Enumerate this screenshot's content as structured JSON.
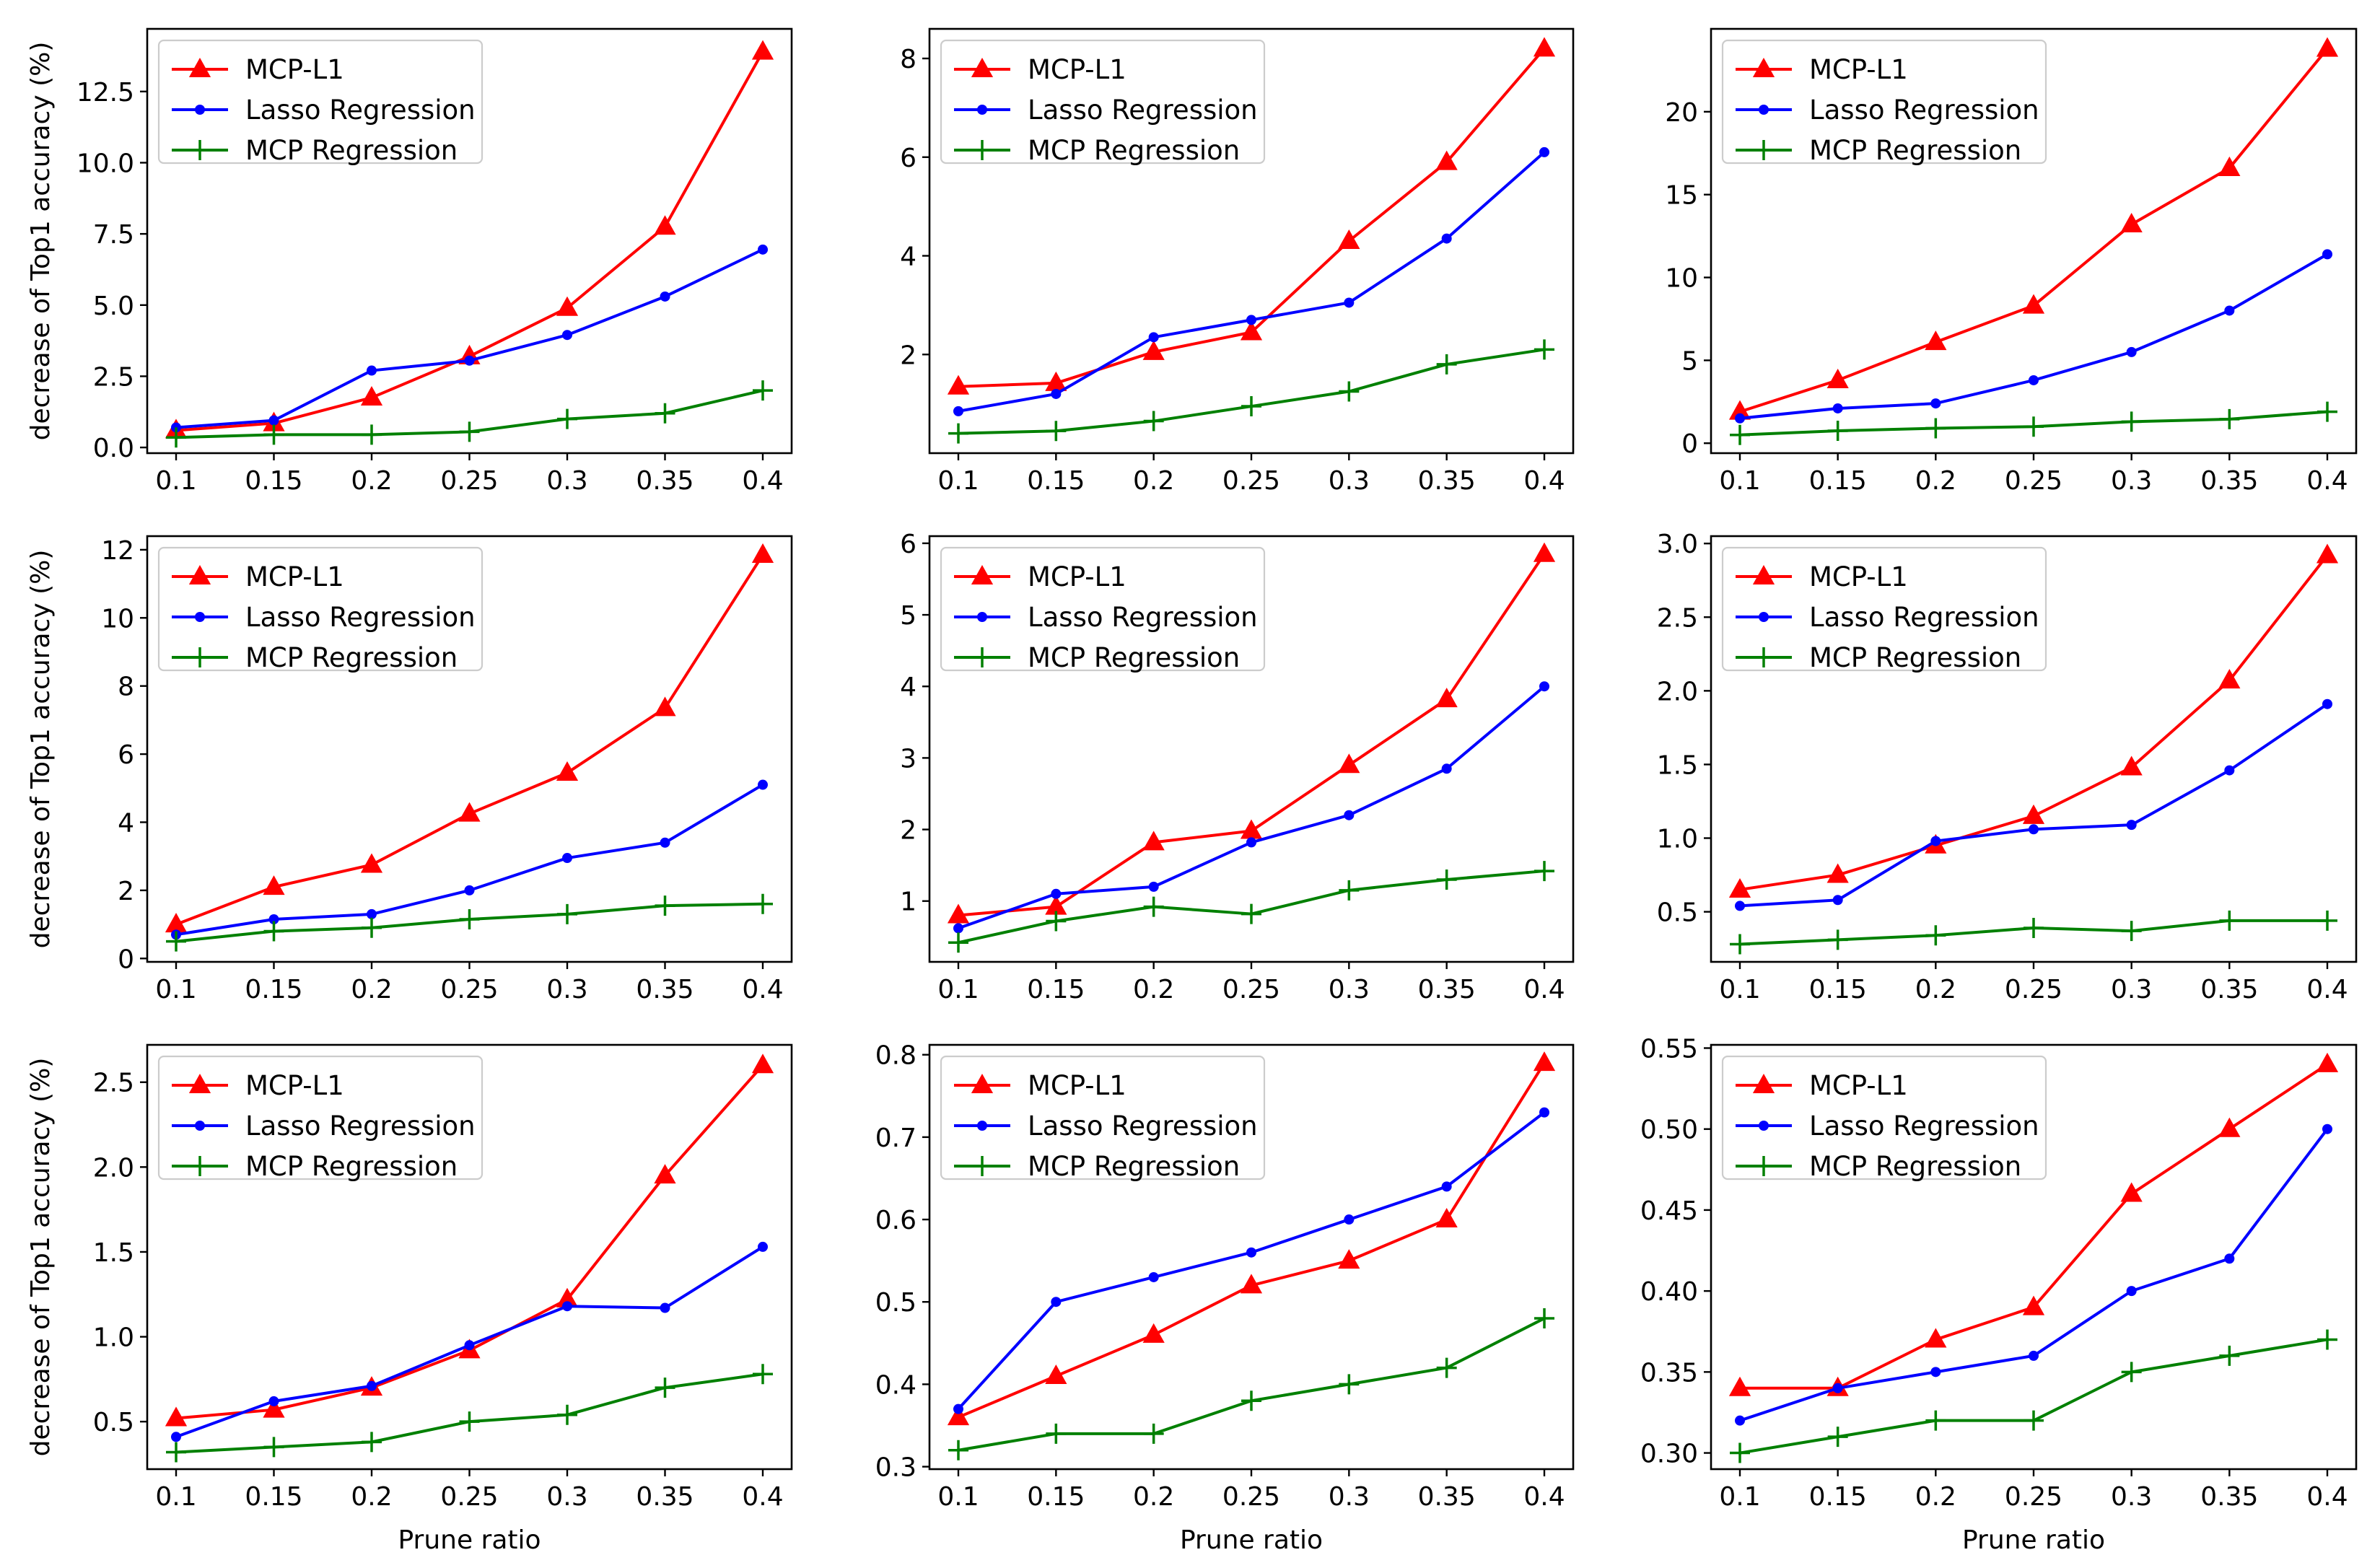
{
  "chart_data": [
    {
      "type": "line",
      "x": [
        "0.1",
        "0.15",
        "0.2",
        "0.25",
        "0.3",
        "0.35",
        "0.4"
      ],
      "series": [
        {
          "name": "MCP-L1",
          "color": "#ff0000",
          "marker": "triangle",
          "values": [
            0.6,
            0.85,
            1.75,
            3.2,
            4.9,
            7.75,
            13.9
          ]
        },
        {
          "name": "Lasso Regression",
          "color": "#0000ff",
          "marker": "dot",
          "values": [
            0.7,
            0.95,
            2.7,
            3.05,
            3.95,
            5.3,
            6.95
          ]
        },
        {
          "name": "MCP Regression",
          "color": "#008000",
          "marker": "plus",
          "values": [
            0.35,
            0.45,
            0.45,
            0.55,
            1.0,
            1.2,
            2.0
          ]
        }
      ],
      "ylim": [
        -0.2,
        14.7
      ],
      "yticks": [
        0.0,
        2.5,
        5.0,
        7.5,
        10.0,
        12.5
      ],
      "ytick_labels": [
        "0.0",
        "2.5",
        "5.0",
        "7.5",
        "10.0",
        "12.5"
      ],
      "ylabel": "decrease of Top1 accuracy (%)",
      "xlabel": "",
      "legend": "upper left"
    },
    {
      "type": "line",
      "x": [
        "0.1",
        "0.15",
        "0.2",
        "0.25",
        "0.3",
        "0.35",
        "0.4"
      ],
      "series": [
        {
          "name": "MCP-L1",
          "color": "#ff0000",
          "marker": "triangle",
          "values": [
            1.35,
            1.42,
            2.05,
            2.45,
            4.3,
            5.9,
            8.2
          ]
        },
        {
          "name": "Lasso Regression",
          "color": "#0000ff",
          "marker": "dot",
          "values": [
            0.85,
            1.2,
            2.35,
            2.7,
            3.05,
            4.35,
            6.1
          ]
        },
        {
          "name": "MCP Regression",
          "color": "#008000",
          "marker": "plus",
          "values": [
            0.4,
            0.45,
            0.65,
            0.95,
            1.25,
            1.8,
            2.1
          ]
        }
      ],
      "ylim": [
        0.0,
        8.6
      ],
      "yticks": [
        2,
        4,
        6,
        8
      ],
      "ytick_labels": [
        "2",
        "4",
        "6",
        "8"
      ],
      "ylabel": "",
      "xlabel": "",
      "legend": "upper left"
    },
    {
      "type": "line",
      "x": [
        "0.1",
        "0.15",
        "0.2",
        "0.25",
        "0.3",
        "0.35",
        "0.4"
      ],
      "series": [
        {
          "name": "MCP-L1",
          "color": "#ff0000",
          "marker": "triangle",
          "values": [
            1.9,
            3.8,
            6.1,
            8.3,
            13.2,
            16.6,
            23.8
          ]
        },
        {
          "name": "Lasso Regression",
          "color": "#0000ff",
          "marker": "dot",
          "values": [
            1.5,
            2.1,
            2.4,
            3.8,
            5.5,
            8.0,
            11.4
          ]
        },
        {
          "name": "MCP Regression",
          "color": "#008000",
          "marker": "plus",
          "values": [
            0.5,
            0.75,
            0.9,
            1.0,
            1.3,
            1.45,
            1.9
          ]
        }
      ],
      "ylim": [
        -0.6,
        25.0
      ],
      "yticks": [
        0,
        5,
        10,
        15,
        20
      ],
      "ytick_labels": [
        "0",
        "5",
        "10",
        "15",
        "20"
      ],
      "ylabel": "",
      "xlabel": "",
      "legend": "upper left"
    },
    {
      "type": "line",
      "x": [
        "0.1",
        "0.15",
        "0.2",
        "0.25",
        "0.3",
        "0.35",
        "0.4"
      ],
      "series": [
        {
          "name": "MCP-L1",
          "color": "#ff0000",
          "marker": "triangle",
          "values": [
            1.0,
            2.1,
            2.75,
            4.25,
            5.45,
            7.35,
            11.85
          ]
        },
        {
          "name": "Lasso Regression",
          "color": "#0000ff",
          "marker": "dot",
          "values": [
            0.7,
            1.15,
            1.3,
            2.0,
            2.95,
            3.4,
            5.1
          ]
        },
        {
          "name": "MCP Regression",
          "color": "#008000",
          "marker": "plus",
          "values": [
            0.5,
            0.8,
            0.9,
            1.15,
            1.3,
            1.55,
            1.6
          ]
        }
      ],
      "ylim": [
        -0.1,
        12.4
      ],
      "yticks": [
        0,
        2,
        4,
        6,
        8,
        10,
        12
      ],
      "ytick_labels": [
        "0",
        "2",
        "4",
        "6",
        "8",
        "10",
        "12"
      ],
      "ylabel": "decrease of Top1 accuracy (%)",
      "xlabel": "",
      "legend": "upper left"
    },
    {
      "type": "line",
      "x": [
        "0.1",
        "0.15",
        "0.2",
        "0.25",
        "0.3",
        "0.35",
        "0.4"
      ],
      "series": [
        {
          "name": "MCP-L1",
          "color": "#ff0000",
          "marker": "triangle",
          "values": [
            0.8,
            0.92,
            1.82,
            1.98,
            2.9,
            3.82,
            5.85
          ]
        },
        {
          "name": "Lasso Regression",
          "color": "#0000ff",
          "marker": "dot",
          "values": [
            0.62,
            1.1,
            1.2,
            1.82,
            2.2,
            2.85,
            4.0
          ]
        },
        {
          "name": "MCP Regression",
          "color": "#008000",
          "marker": "plus",
          "values": [
            0.42,
            0.72,
            0.92,
            0.82,
            1.15,
            1.3,
            1.42
          ]
        }
      ],
      "ylim": [
        0.15,
        6.1
      ],
      "yticks": [
        1,
        2,
        3,
        4,
        5,
        6
      ],
      "ytick_labels": [
        "1",
        "2",
        "3",
        "4",
        "5",
        "6"
      ],
      "ylabel": "",
      "xlabel": "",
      "legend": "upper left"
    },
    {
      "type": "line",
      "x": [
        "0.1",
        "0.15",
        "0.2",
        "0.25",
        "0.3",
        "0.35",
        "0.4"
      ],
      "series": [
        {
          "name": "MCP-L1",
          "color": "#ff0000",
          "marker": "triangle",
          "values": [
            0.65,
            0.75,
            0.95,
            1.15,
            1.48,
            2.07,
            2.92
          ]
        },
        {
          "name": "Lasso Regression",
          "color": "#0000ff",
          "marker": "dot",
          "values": [
            0.54,
            0.58,
            0.98,
            1.06,
            1.09,
            1.46,
            1.91
          ]
        },
        {
          "name": "MCP Regression",
          "color": "#008000",
          "marker": "plus",
          "values": [
            0.28,
            0.31,
            0.34,
            0.39,
            0.37,
            0.44,
            0.44
          ]
        }
      ],
      "ylim": [
        0.16,
        3.05
      ],
      "yticks": [
        0.5,
        1.0,
        1.5,
        2.0,
        2.5,
        3.0
      ],
      "ytick_labels": [
        "0.5",
        "1.0",
        "1.5",
        "2.0",
        "2.5",
        "3.0"
      ],
      "ylabel": "",
      "xlabel": "",
      "legend": "upper left"
    },
    {
      "type": "line",
      "x": [
        "0.1",
        "0.15",
        "0.2",
        "0.25",
        "0.3",
        "0.35",
        "0.4"
      ],
      "series": [
        {
          "name": "MCP-L1",
          "color": "#ff0000",
          "marker": "triangle",
          "values": [
            0.52,
            0.57,
            0.7,
            0.92,
            1.22,
            1.95,
            2.6
          ]
        },
        {
          "name": "Lasso Regression",
          "color": "#0000ff",
          "marker": "dot",
          "values": [
            0.41,
            0.62,
            0.71,
            0.95,
            1.18,
            1.17,
            1.53
          ]
        },
        {
          "name": "MCP Regression",
          "color": "#008000",
          "marker": "plus",
          "values": [
            0.32,
            0.35,
            0.38,
            0.5,
            0.54,
            0.7,
            0.78
          ]
        }
      ],
      "ylim": [
        0.22,
        2.72
      ],
      "yticks": [
        0.5,
        1.0,
        1.5,
        2.0,
        2.5
      ],
      "ytick_labels": [
        "0.5",
        "1.0",
        "1.5",
        "2.0",
        "2.5"
      ],
      "ylabel": "decrease of Top1 accuracy (%)",
      "xlabel": "Prune ratio",
      "legend": "upper left"
    },
    {
      "type": "line",
      "x": [
        "0.1",
        "0.15",
        "0.2",
        "0.25",
        "0.3",
        "0.35",
        "0.4"
      ],
      "series": [
        {
          "name": "MCP-L1",
          "color": "#ff0000",
          "marker": "triangle",
          "values": [
            0.36,
            0.41,
            0.46,
            0.52,
            0.55,
            0.6,
            0.79
          ]
        },
        {
          "name": "Lasso Regression",
          "color": "#0000ff",
          "marker": "dot",
          "values": [
            0.37,
            0.5,
            0.53,
            0.56,
            0.6,
            0.64,
            0.73
          ]
        },
        {
          "name": "MCP Regression",
          "color": "#008000",
          "marker": "plus",
          "values": [
            0.32,
            0.34,
            0.34,
            0.38,
            0.4,
            0.42,
            0.48
          ]
        }
      ],
      "ylim": [
        0.297,
        0.812
      ],
      "yticks": [
        0.3,
        0.4,
        0.5,
        0.6,
        0.7,
        0.8
      ],
      "ytick_labels": [
        "0.3",
        "0.4",
        "0.5",
        "0.6",
        "0.7",
        "0.8"
      ],
      "ylabel": "",
      "xlabel": "Prune ratio",
      "legend": "upper left"
    },
    {
      "type": "line",
      "x": [
        "0.1",
        "0.15",
        "0.2",
        "0.25",
        "0.3",
        "0.35",
        "0.4"
      ],
      "series": [
        {
          "name": "MCP-L1",
          "color": "#ff0000",
          "marker": "triangle",
          "values": [
            0.34,
            0.34,
            0.37,
            0.39,
            0.46,
            0.5,
            0.54
          ]
        },
        {
          "name": "Lasso Regression",
          "color": "#0000ff",
          "marker": "dot",
          "values": [
            0.32,
            0.34,
            0.35,
            0.36,
            0.4,
            0.42,
            0.5
          ]
        },
        {
          "name": "MCP Regression",
          "color": "#008000",
          "marker": "plus",
          "values": [
            0.3,
            0.31,
            0.32,
            0.32,
            0.35,
            0.36,
            0.37
          ]
        }
      ],
      "ylim": [
        0.29,
        0.552
      ],
      "yticks": [
        0.3,
        0.35,
        0.4,
        0.45,
        0.5,
        0.55
      ],
      "ytick_labels": [
        "0.30",
        "0.35",
        "0.40",
        "0.45",
        "0.50",
        "0.55"
      ],
      "ylabel": "",
      "xlabel": "Prune ratio",
      "legend": "upper left"
    }
  ]
}
